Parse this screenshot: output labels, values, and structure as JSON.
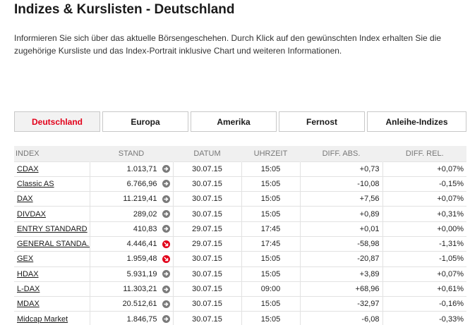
{
  "page": {
    "title": "Indizes & Kurslisten - Deutschland",
    "intro": "Informieren Sie sich über das aktuelle Börsengeschehen. Durch Klick auf den gewünschten Index erhalten Sie die zugehörige Kursliste und das Index-Portrait inklusive Chart und weiteren Informationen."
  },
  "colors": {
    "accent": "#e2001a",
    "positive": "#2c9a2c",
    "negative": "#e2001a",
    "header_bg": "#f0f0f0"
  },
  "tabs": [
    {
      "label": "Deutschland",
      "active": true
    },
    {
      "label": "Europa",
      "active": false
    },
    {
      "label": "Amerika",
      "active": false
    },
    {
      "label": "Fernost",
      "active": false
    },
    {
      "label": "Anleihe-Indizes",
      "active": false
    }
  ],
  "table": {
    "headers": {
      "index": "INDEX",
      "stand": "STAND",
      "datum": "DATUM",
      "uhrzeit": "UHRZEIT",
      "diff_abs": "DIFF. ABS.",
      "diff_rel": "DIFF. REL."
    },
    "rows": [
      {
        "name": "CDAX",
        "stand": "1.013,71",
        "trend": "flat",
        "trend_icon": "arrow-right-icon",
        "datum": "30.07.15",
        "uhrzeit": "15:05",
        "diff_abs": "+0,73",
        "diff_rel": "+0,07%",
        "sign": "pos"
      },
      {
        "name": "Classic AS",
        "stand": "6.766,96",
        "trend": "flat",
        "trend_icon": "arrow-right-icon",
        "datum": "30.07.15",
        "uhrzeit": "15:05",
        "diff_abs": "-10,08",
        "diff_rel": "-0,15%",
        "sign": "neg"
      },
      {
        "name": "DAX",
        "stand": "11.219,41",
        "trend": "flat",
        "trend_icon": "arrow-right-icon",
        "datum": "30.07.15",
        "uhrzeit": "15:05",
        "diff_abs": "+7,56",
        "diff_rel": "+0,07%",
        "sign": "pos"
      },
      {
        "name": "DIVDAX",
        "stand": "289,02",
        "trend": "flat",
        "trend_icon": "arrow-right-icon",
        "datum": "30.07.15",
        "uhrzeit": "15:05",
        "diff_abs": "+0,89",
        "diff_rel": "+0,31%",
        "sign": "pos"
      },
      {
        "name": "ENTRY STANDARD",
        "stand": "410,83",
        "trend": "flat",
        "trend_icon": "arrow-right-icon",
        "datum": "29.07.15",
        "uhrzeit": "17:45",
        "diff_abs": "+0,01",
        "diff_rel": "+0,00%",
        "sign": "zero"
      },
      {
        "name": "GENERAL STANDA...",
        "stand": "4.446,41",
        "trend": "down",
        "trend_icon": "arrow-down-icon",
        "datum": "29.07.15",
        "uhrzeit": "17:45",
        "diff_abs": "-58,98",
        "diff_rel": "-1,31%",
        "sign": "neg"
      },
      {
        "name": "GEX",
        "stand": "1.959,48",
        "trend": "down",
        "trend_icon": "arrow-down-icon",
        "datum": "30.07.15",
        "uhrzeit": "15:05",
        "diff_abs": "-20,87",
        "diff_rel": "-1,05%",
        "sign": "neg"
      },
      {
        "name": "HDAX",
        "stand": "5.931,19",
        "trend": "flat",
        "trend_icon": "arrow-right-icon",
        "datum": "30.07.15",
        "uhrzeit": "15:05",
        "diff_abs": "+3,89",
        "diff_rel": "+0,07%",
        "sign": "pos"
      },
      {
        "name": "L-DAX",
        "stand": "11.303,21",
        "trend": "flat",
        "trend_icon": "arrow-right-icon",
        "datum": "30.07.15",
        "uhrzeit": "09:00",
        "diff_abs": "+68,96",
        "diff_rel": "+0,61%",
        "sign": "pos"
      },
      {
        "name": "MDAX",
        "stand": "20.512,61",
        "trend": "flat",
        "trend_icon": "arrow-right-icon",
        "datum": "30.07.15",
        "uhrzeit": "15:05",
        "diff_abs": "-32,97",
        "diff_rel": "-0,16%",
        "sign": "neg"
      },
      {
        "name": "Midcap Market",
        "stand": "1.846,75",
        "trend": "flat",
        "trend_icon": "arrow-right-icon",
        "datum": "30.07.15",
        "uhrzeit": "15:05",
        "diff_abs": "-6,08",
        "diff_rel": "-0,33%",
        "sign": "neg"
      }
    ]
  }
}
